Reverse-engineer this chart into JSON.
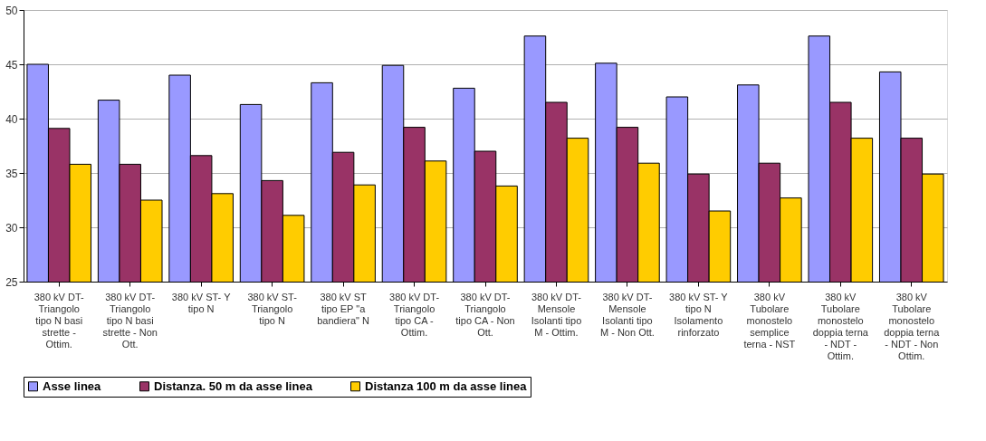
{
  "chart_data": {
    "type": "bar",
    "categories": [
      "380 kV DT- Triangolo tipo N basi strette - Ottim.",
      "380 kV DT- Triangolo tipo N basi strette - Non Ott.",
      "380 kV ST- Y tipo N",
      "380 kV ST- Triangolo tipo N",
      "380 kV ST tipo EP \"a bandiera\" N",
      "380 kV DT- Triangolo tipo CA - Ottim.",
      "380 kV DT- Triangolo tipo CA - Non Ott.",
      "380 kV DT- Mensole Isolanti tipo M - Ottim.",
      "380 kV DT- Mensole Isolanti tipo M - Non Ott.",
      "380 kV ST- Y tipo N Isolamento rinforzato",
      "380 kV Tubolare monostelo semplice terna - NST",
      "380 kV Tubolare monostelo doppia terna - NDT - Ottim.",
      "380 kV Tubolare monostelo doppia terna - NDT - Non Ottim."
    ],
    "series": [
      {
        "name": "Asse linea",
        "color": "#9999ff",
        "values": [
          45.0,
          41.7,
          44.0,
          41.3,
          43.3,
          44.9,
          42.8,
          47.6,
          45.1,
          42.0,
          43.1,
          47.6,
          44.3
        ]
      },
      {
        "name": "Distanza. 50 m da asse linea",
        "color": "#993366",
        "values": [
          39.1,
          35.8,
          36.6,
          34.3,
          36.9,
          39.2,
          37.0,
          41.5,
          39.2,
          34.9,
          35.9,
          41.5,
          38.2
        ]
      },
      {
        "name": "Distanza 100 m da asse linea",
        "color": "#ffcc00",
        "values": [
          35.8,
          32.5,
          33.1,
          31.1,
          33.9,
          36.1,
          33.8,
          38.2,
          35.9,
          31.5,
          32.7,
          38.2,
          34.9
        ]
      }
    ],
    "ylim": [
      25,
      50
    ],
    "yticks": [
      25,
      30,
      35,
      40,
      45,
      50
    ],
    "grid": "y",
    "legend": "bottom"
  }
}
